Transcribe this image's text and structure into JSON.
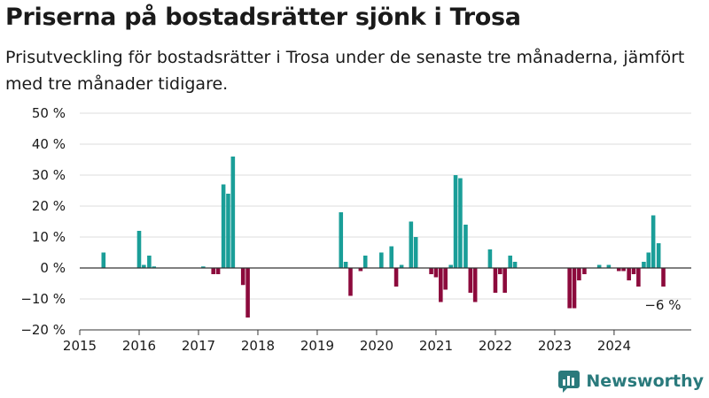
{
  "title": "Priserna på bostadsrätter sjönk i Trosa",
  "subtitle": "Prisutveckling för bostadsrätter i Trosa under de senaste tre månaderna, jämfört med tre månader tidigare.",
  "brand": "Newsworthy",
  "colors": {
    "positive": "#1a9e98",
    "negative": "#8c0a3c",
    "grid": "#dddddd",
    "axis": "#333333"
  },
  "chart_data": {
    "type": "bar",
    "x_unit": "year (decimal)",
    "y_unit": "percent",
    "ylim": [
      -20,
      50
    ],
    "xlim": [
      2015,
      2025.3
    ],
    "y_ticks": [
      -20,
      -10,
      0,
      10,
      20,
      30,
      40,
      50
    ],
    "y_tick_labels": [
      "−20 %",
      "−10 %",
      "0 %",
      "10 %",
      "20 %",
      "30 %",
      "40 %",
      "50 %"
    ],
    "x_ticks": [
      2015,
      2016,
      2017,
      2018,
      2019,
      2020,
      2021,
      2022,
      2023,
      2024
    ],
    "x_tick_labels": [
      "2015",
      "2016",
      "2017",
      "2018",
      "2019",
      "2020",
      "2021",
      "2022",
      "2023",
      "2024"
    ],
    "grid": true,
    "annotation": "−6 %",
    "points": [
      {
        "x": 2015.4,
        "y": 5
      },
      {
        "x": 2016.0,
        "y": 12
      },
      {
        "x": 2016.08,
        "y": 1
      },
      {
        "x": 2016.17,
        "y": 4
      },
      {
        "x": 2016.25,
        "y": 0.5
      },
      {
        "x": 2017.08,
        "y": 0.5
      },
      {
        "x": 2017.25,
        "y": -2
      },
      {
        "x": 2017.33,
        "y": -2
      },
      {
        "x": 2017.42,
        "y": 27
      },
      {
        "x": 2017.5,
        "y": 24
      },
      {
        "x": 2017.58,
        "y": 36
      },
      {
        "x": 2017.75,
        "y": -5.5
      },
      {
        "x": 2017.83,
        "y": -16
      },
      {
        "x": 2019.4,
        "y": 18
      },
      {
        "x": 2019.48,
        "y": 2
      },
      {
        "x": 2019.56,
        "y": -9
      },
      {
        "x": 2019.73,
        "y": -1
      },
      {
        "x": 2019.81,
        "y": 4
      },
      {
        "x": 2020.08,
        "y": 5
      },
      {
        "x": 2020.25,
        "y": 7
      },
      {
        "x": 2020.33,
        "y": -6
      },
      {
        "x": 2020.42,
        "y": 1
      },
      {
        "x": 2020.58,
        "y": 15
      },
      {
        "x": 2020.66,
        "y": 10
      },
      {
        "x": 2020.92,
        "y": -2
      },
      {
        "x": 2021.0,
        "y": -3
      },
      {
        "x": 2021.08,
        "y": -11
      },
      {
        "x": 2021.16,
        "y": -7
      },
      {
        "x": 2021.25,
        "y": 1
      },
      {
        "x": 2021.33,
        "y": 30
      },
      {
        "x": 2021.41,
        "y": 29
      },
      {
        "x": 2021.5,
        "y": 14
      },
      {
        "x": 2021.58,
        "y": -8
      },
      {
        "x": 2021.66,
        "y": -11
      },
      {
        "x": 2021.91,
        "y": 6
      },
      {
        "x": 2022.0,
        "y": -8
      },
      {
        "x": 2022.08,
        "y": -2
      },
      {
        "x": 2022.16,
        "y": -8
      },
      {
        "x": 2022.25,
        "y": 4
      },
      {
        "x": 2022.33,
        "y": 2
      },
      {
        "x": 2023.25,
        "y": -13
      },
      {
        "x": 2023.33,
        "y": -13
      },
      {
        "x": 2023.41,
        "y": -4
      },
      {
        "x": 2023.5,
        "y": -2
      },
      {
        "x": 2023.75,
        "y": 1
      },
      {
        "x": 2023.91,
        "y": 1
      },
      {
        "x": 2024.08,
        "y": -1
      },
      {
        "x": 2024.16,
        "y": -1
      },
      {
        "x": 2024.25,
        "y": -4
      },
      {
        "x": 2024.33,
        "y": -2
      },
      {
        "x": 2024.41,
        "y": -6
      },
      {
        "x": 2024.5,
        "y": 2
      },
      {
        "x": 2024.58,
        "y": 5
      },
      {
        "x": 2024.66,
        "y": 17
      },
      {
        "x": 2024.75,
        "y": 8
      },
      {
        "x": 2024.83,
        "y": -6
      }
    ]
  }
}
